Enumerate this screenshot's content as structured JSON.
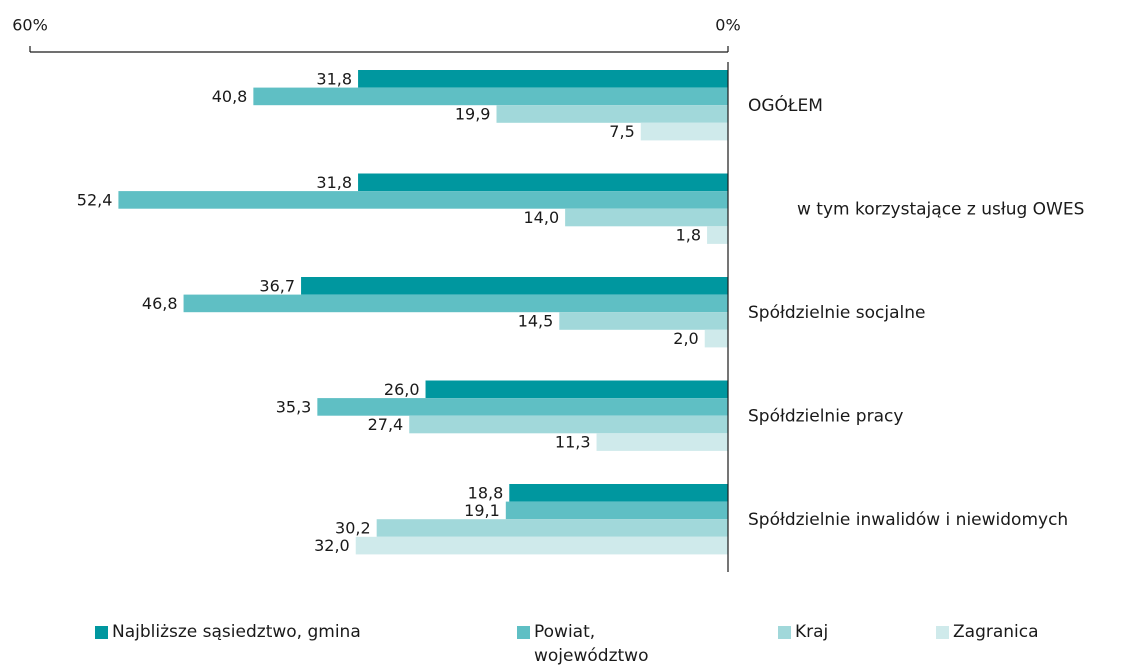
{
  "chart_data": {
    "type": "bar",
    "orientation": "horizontal",
    "categories": [
      "OGÓŁEM",
      "w tym korzystające z usług OWES",
      "Spółdzielnie socjalne",
      "Spółdzielnie pracy",
      "Spółdzielnie inwalidów i niewidomych"
    ],
    "series": [
      {
        "name": "Najbliższe sąsiedztwo, gmina",
        "color": "#00979f",
        "values": [
          31.8,
          31.8,
          36.7,
          26.0,
          18.8
        ],
        "value_labels": [
          "31,8",
          "31,8",
          "36,7",
          "26,0",
          "18,8"
        ]
      },
      {
        "name": "Powiat, województwo",
        "color": "#5fbfc4",
        "values": [
          40.8,
          52.4,
          46.8,
          35.3,
          19.1
        ],
        "value_labels": [
          "40,8",
          "52,4",
          "46,8",
          "35,3",
          "19,1"
        ]
      },
      {
        "name": "Kraj",
        "color": "#a1d8da",
        "values": [
          19.9,
          14.0,
          14.5,
          27.4,
          30.2
        ],
        "value_labels": [
          "19,9",
          "14,0",
          "14,5",
          "27,4",
          "30,2"
        ]
      },
      {
        "name": "Zagranica",
        "color": "#cfeaeb",
        "values": [
          7.5,
          1.8,
          2.0,
          11.3,
          32.0
        ],
        "value_labels": [
          "7,5",
          "1,8",
          "2,0",
          "11,3",
          "32,0"
        ]
      }
    ],
    "xlim": [
      0,
      60
    ],
    "xticks": [
      {
        "value": 60,
        "label": "60%"
      },
      {
        "value": 0,
        "label": "0%"
      }
    ]
  }
}
